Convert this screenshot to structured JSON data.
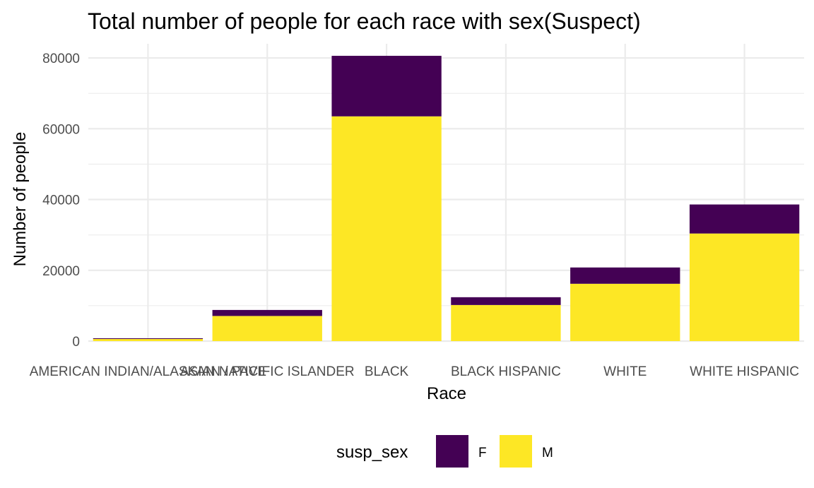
{
  "chart_data": {
    "type": "bar",
    "stacked": true,
    "title": "Total number of people for each race with sex(Suspect)",
    "xlabel": "Race",
    "ylabel": "Number of people",
    "categories": [
      "AMERICAN INDIAN/ALASKAN NATIVE",
      "ASIAN / PACIFIC ISLANDER",
      "BLACK",
      "BLACK HISPANIC",
      "WHITE",
      "WHITE HISPANIC"
    ],
    "series": [
      {
        "name": "M",
        "color": "#FDE725",
        "values": [
          600,
          7100,
          63500,
          10200,
          16200,
          30400
        ]
      },
      {
        "name": "F",
        "color": "#440154",
        "values": [
          200,
          1700,
          17100,
          2200,
          4600,
          8200
        ]
      }
    ],
    "ylim": [
      0,
      84000
    ],
    "yticks": [
      0,
      20000,
      40000,
      60000,
      80000
    ],
    "ytick_labels": [
      "0",
      "20000",
      "40000",
      "60000",
      "80000"
    ],
    "grid": true,
    "legend": {
      "title": "susp_sex",
      "position": "bottom",
      "entries": [
        {
          "label": "F",
          "color": "#440154"
        },
        {
          "label": "M",
          "color": "#FDE725"
        }
      ]
    }
  }
}
